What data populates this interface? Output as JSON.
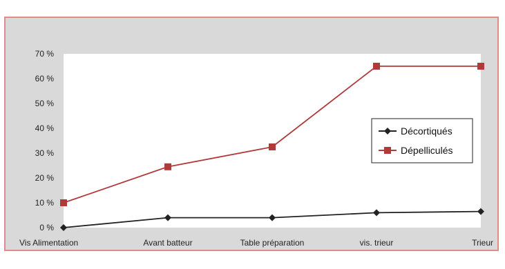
{
  "chart_data": {
    "type": "line",
    "categories": [
      "Vis Alimentation",
      "Avant batteur",
      "Table préparation",
      "vis. trieur",
      "Trieur"
    ],
    "y_ticks": [
      "0 %",
      "10 %",
      "20 %",
      "30 %",
      "40 %",
      "50 %",
      "60 %",
      "70 %"
    ],
    "ylim": [
      0,
      70
    ],
    "grid": false,
    "legend_position": "right",
    "series": [
      {
        "name": "Décortiqués",
        "values": [
          0,
          4,
          4,
          6,
          6.5
        ],
        "color": "#222222",
        "marker": "diamond"
      },
      {
        "name": "Dépelliculés",
        "values": [
          10,
          24.5,
          32.5,
          65,
          65
        ],
        "color": "#b03a3a",
        "marker": "square"
      }
    ]
  }
}
